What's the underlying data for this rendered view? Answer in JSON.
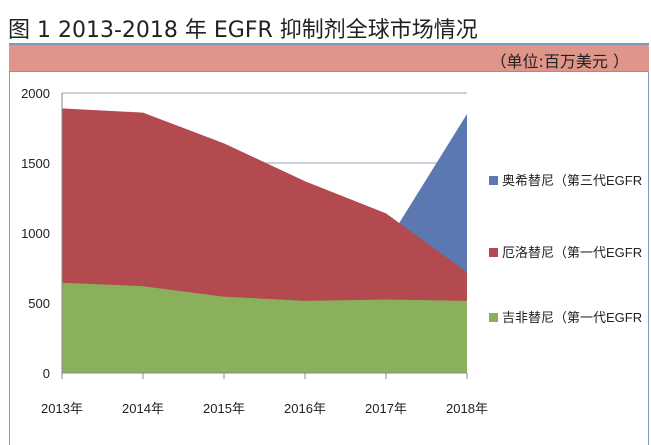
{
  "title": "图 1  2013-2018 年 EGFR 抑制剂全球市场情况",
  "unit": "（单位:百万美元  ）",
  "chart_data": {
    "type": "area",
    "stacked": false,
    "categories": [
      "2013年",
      "2014年",
      "2015年",
      "2016年",
      "2017年",
      "2018年"
    ],
    "ylim": [
      0,
      2000
    ],
    "yticks": [
      0,
      500,
      1000,
      1500,
      2000
    ],
    "grid": true,
    "legend_position": "right",
    "series": [
      {
        "name": "奥希替尼（第三代EGFR",
        "color": "#5b78b0",
        "values": [
          null,
          null,
          null,
          null,
          920,
          1850
        ]
      },
      {
        "name": "厄洛替尼（第一代EGFR",
        "color": "#b34a50",
        "values": [
          1890,
          1860,
          1640,
          1370,
          1140,
          720
        ]
      },
      {
        "name": "吉非替尼（第一代EGFR",
        "color": "#8bb05c",
        "values": [
          645,
          620,
          545,
          515,
          525,
          515
        ]
      }
    ]
  }
}
